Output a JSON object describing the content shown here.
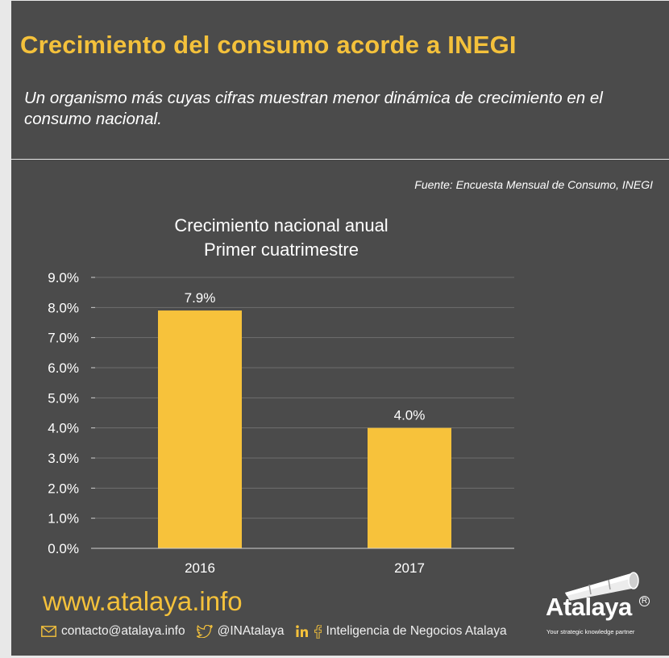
{
  "header": {
    "title": "Crecimiento del consumo acorde a INEGI",
    "subtitle": "Un organismo más cuyas cifras muestran menor dinámica de crecimiento en el consumo nacional."
  },
  "source": "Fuente: Encuesta Mensual de Consumo, INEGI",
  "chart_data": {
    "type": "bar",
    "title_lines": [
      "Crecimiento nacional anual",
      "Primer cuatrimestre"
    ],
    "categories": [
      "2016",
      "2017"
    ],
    "values": [
      7.9,
      4.0
    ],
    "value_labels": [
      "7.9%",
      "4.0%"
    ],
    "ylim": [
      0,
      9
    ],
    "yticks": [
      "0.0%",
      "1.0%",
      "2.0%",
      "3.0%",
      "4.0%",
      "5.0%",
      "6.0%",
      "7.0%",
      "8.0%",
      "9.0%"
    ],
    "xlabel": "",
    "ylabel": "",
    "grid": true,
    "bar_color": "#f7c23b",
    "grid_color": "#6e6e6e"
  },
  "footer": {
    "website": "www.atalaya.info",
    "email": "contacto@atalaya.info",
    "twitter": "@INAtalaya",
    "social_name": "Inteligencia de Negocios Atalaya",
    "icons": [
      "mail-icon",
      "twitter-icon",
      "linkedin-icon",
      "facebook-icon"
    ],
    "accent_color": "#f4c13b"
  },
  "logo": {
    "wordmark": "Atalaya",
    "registered": "R",
    "tagline": "Your strategic knowledge partner"
  },
  "colors": {
    "background": "#4b4b4b",
    "title": "#f4c13b",
    "text": "#ffffff"
  }
}
